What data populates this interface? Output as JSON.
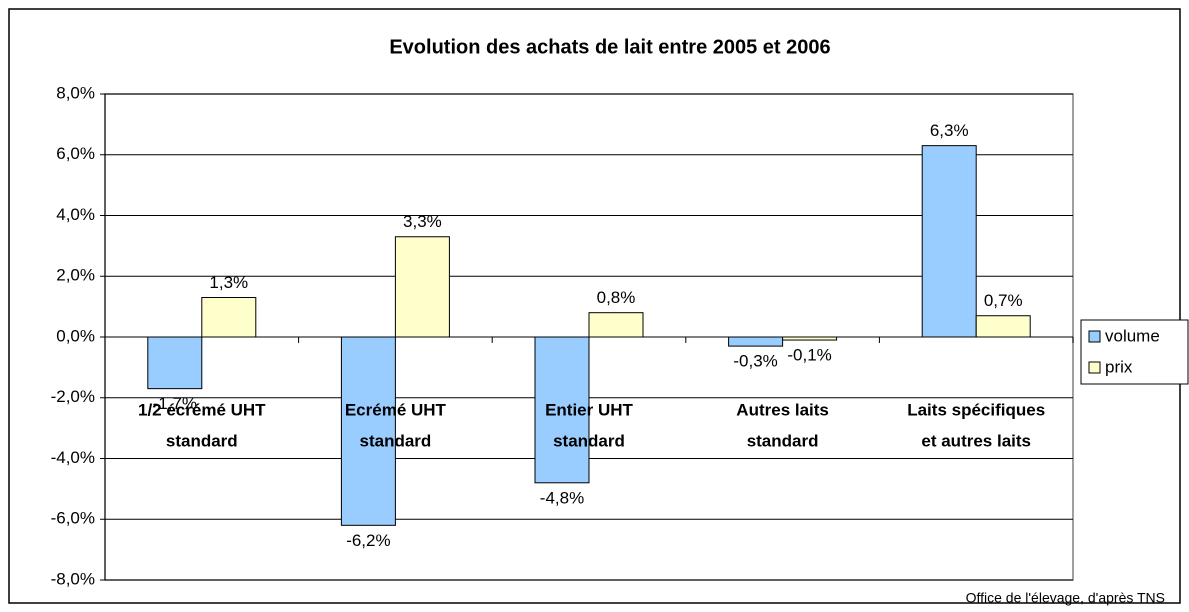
{
  "chart_data": {
    "type": "bar",
    "title": "Evolution des achats de lait entre 2005 et 2006",
    "categories": [
      [
        "1/2 écrémé UHT",
        "standard"
      ],
      [
        "Ecrémé UHT",
        "standard"
      ],
      [
        "Entier UHT",
        "standard"
      ],
      [
        "Autres laits",
        "standard"
      ],
      [
        "Laits spécifiques",
        "et autres laits"
      ]
    ],
    "series": [
      {
        "name": "volume",
        "color": "#99ccff",
        "values": [
          -1.7,
          -6.2,
          -4.8,
          -0.3,
          6.3
        ],
        "value_labels": [
          "-1,7%",
          "-6,2%",
          "-4,8%",
          "-0,3%",
          "6,3%"
        ]
      },
      {
        "name": "prix",
        "color": "#ffffcc",
        "values": [
          1.3,
          3.3,
          0.8,
          -0.1,
          0.7
        ],
        "value_labels": [
          "1,3%",
          "3,3%",
          "0,8%",
          "-0,1%",
          "0,7%"
        ]
      }
    ],
    "ylim": [
      -8,
      8
    ],
    "yticks": [
      {
        "value": -8,
        "label": "-8,0%"
      },
      {
        "value": -6,
        "label": "-6,0%"
      },
      {
        "value": -4,
        "label": "-4,0%"
      },
      {
        "value": -2,
        "label": "-2,0%"
      },
      {
        "value": 0,
        "label": "0,0%"
      },
      {
        "value": 2,
        "label": "2,0%"
      },
      {
        "value": 4,
        "label": "4,0%"
      },
      {
        "value": 6,
        "label": "6,0%"
      },
      {
        "value": 8,
        "label": "8,0%"
      }
    ],
    "grid": true,
    "legend": "right",
    "source": "Office de l'élevage, d'après TNS"
  }
}
